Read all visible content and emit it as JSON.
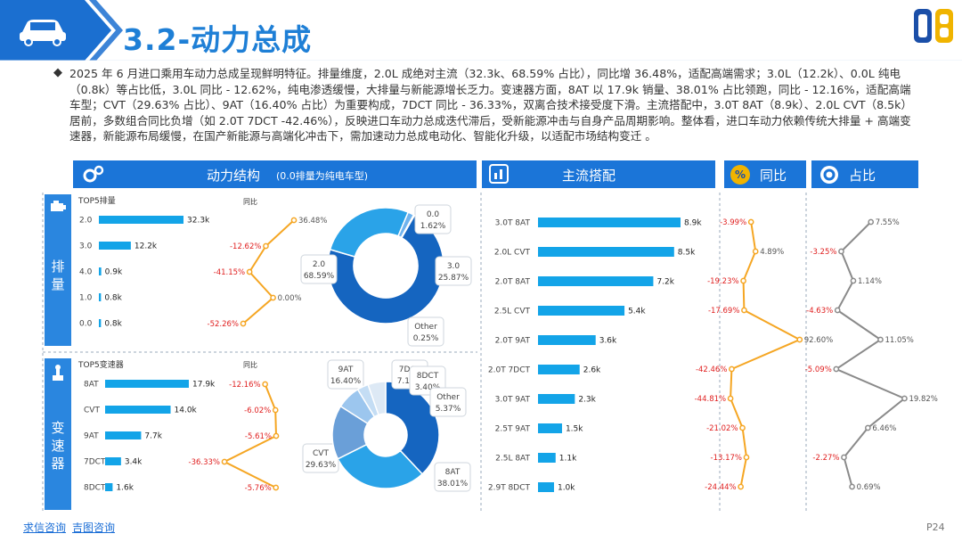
{
  "header": {
    "title": "3.2-动力总成"
  },
  "intro": "2025 年 6 月进口乘用车动力总成呈现鲜明特征。排量维度，2.0L 成绝对主流（32.3k、68.59% 占比），同比增 36.48%，适配高端需求；3.0L（12.2k）、0.0L 纯电（0.8k）等占比低，3.0L 同比 - 12.62%，纯电渗透缓慢，大排量与新能源增长乏力。变速器方面，8AT 以 17.9k 销量、38.01% 占比领跑，同比 - 12.16%，适配高端车型；CVT（29.63% 占比）、9AT（16.40% 占比）为重要构成，7DCT 同比 - 36.33%，双离合技术接受度下滑。主流搭配中，3.0T 8AT（8.9k）、2.0L CVT（8.5k）居前，多数组合同比负增（如 2.0T 7DCT -42.46%），反映进口车动力总成迭代滞后，受新能源冲击与自身产品周期影响。整体看，进口车动力依赖传统大排量 + 高端变速器，新能源布局缓慢，在国产新能源与高端化冲击下，需加速动力总成电动化、智能化升级，以适配市场结构变迁 。",
  "sections": {
    "structure_title": "动力结构",
    "structure_note": "(0.0排量为纯电车型)",
    "combo_title": "主流搭配",
    "yoy_title": "同比",
    "share_title": "占比",
    "side_displacement": "排量",
    "side_transmission": "变速器"
  },
  "footer": {
    "link1": "求信咨询",
    "link2": "吉图咨询",
    "page": "P24"
  },
  "colors": {
    "blue": "#1b75d8",
    "bar": "#13a4e8",
    "orange": "#f5a623",
    "gray_line": "#8a8a8a",
    "red_text": "#e02020"
  },
  "chart_data": [
    {
      "id": "displacement",
      "type": "bar",
      "title": "TOP5排量",
      "categories": [
        "2.0",
        "3.0",
        "4.0",
        "1.0",
        "0.0"
      ],
      "values": [
        32.3,
        12.2,
        0.9,
        0.8,
        0.8
      ],
      "value_labels": [
        "32.3k",
        "12.2k",
        "0.9k",
        "0.8k",
        "0.8k"
      ]
    },
    {
      "id": "displacement_yoy",
      "type": "line",
      "title": "同比",
      "categories": [
        "2.0",
        "3.0",
        "4.0",
        "1.0",
        "0.0"
      ],
      "values": [
        36.48,
        -12.62,
        -41.15,
        0.0,
        -52.26
      ],
      "value_labels": [
        "36.48%",
        "-12.62%",
        "-41.15%",
        "0.00%",
        "-52.26%"
      ]
    },
    {
      "id": "displacement_share",
      "type": "pie",
      "categories": [
        "2.0",
        "3.0",
        "0.0",
        "Other"
      ],
      "values": [
        68.59,
        25.87,
        1.62,
        0.25
      ],
      "value_labels": [
        "68.59%",
        "25.87%",
        "1.62%",
        "0.25%"
      ]
    },
    {
      "id": "transmission",
      "type": "bar",
      "title": "TOP5变速器",
      "categories": [
        "8AT",
        "CVT",
        "9AT",
        "7DCT",
        "8DCT"
      ],
      "values": [
        17.9,
        14.0,
        7.7,
        3.4,
        1.6
      ],
      "value_labels": [
        "17.9k",
        "14.0k",
        "7.7k",
        "3.4k",
        "1.6k"
      ]
    },
    {
      "id": "transmission_yoy",
      "type": "line",
      "title": "同比",
      "categories": [
        "8AT",
        "CVT",
        "9AT",
        "7DCT",
        "8DCT"
      ],
      "values": [
        -12.16,
        -6.02,
        -5.61,
        -36.33,
        -5.76
      ],
      "value_labels": [
        "-12.16%",
        "-6.02%",
        "-5.61%",
        "-36.33%",
        "-5.76%"
      ]
    },
    {
      "id": "transmission_share",
      "type": "pie",
      "categories": [
        "8AT",
        "CVT",
        "9AT",
        "7DCT",
        "8DCT",
        "Other"
      ],
      "values": [
        38.01,
        29.63,
        16.4,
        7.19,
        3.4,
        5.37
      ],
      "value_labels": [
        "38.01%",
        "29.63%",
        "16.40%",
        "7.19%",
        "3.40%",
        "5.37%"
      ]
    },
    {
      "id": "combo",
      "type": "bar",
      "categories": [
        "3.0T 8AT",
        "2.0L CVT",
        "2.0T 8AT",
        "2.5L CVT",
        "2.0T 9AT",
        "2.0T 7DCT",
        "3.0T 9AT",
        "2.5T 9AT",
        "2.5L 8AT",
        "2.9T 8DCT"
      ],
      "values": [
        8.9,
        8.5,
        7.2,
        5.4,
        3.6,
        2.6,
        2.3,
        1.5,
        1.1,
        1.0
      ],
      "value_labels": [
        "8.9k",
        "8.5k",
        "7.2k",
        "5.4k",
        "3.6k",
        "2.6k",
        "2.3k",
        "1.5k",
        "1.1k",
        "1.0k"
      ]
    },
    {
      "id": "combo_yoy",
      "type": "line",
      "values": [
        -3.99,
        4.89,
        -19.23,
        -17.69,
        92.6,
        -42.46,
        -44.81,
        -21.02,
        -13.17,
        -24.44
      ],
      "value_labels": [
        "-3.99%",
        "4.89%",
        "-19.23%",
        "-17.69%",
        "92.60%",
        "-42.46%",
        "-44.81%",
        "-21.02%",
        "-13.17%",
        "-24.44%"
      ]
    },
    {
      "id": "combo_share",
      "type": "line",
      "values": [
        7.55,
        -3.25,
        1.14,
        -4.63,
        11.05,
        -5.09,
        19.82,
        6.46,
        -2.27,
        0.69
      ],
      "value_labels": [
        "7.55%",
        "-3.25%",
        "1.14%",
        "-4.63%",
        "11.05%",
        "-5.09%",
        "19.82%",
        "6.46%",
        "-2.27%",
        "0.69%"
      ]
    }
  ]
}
